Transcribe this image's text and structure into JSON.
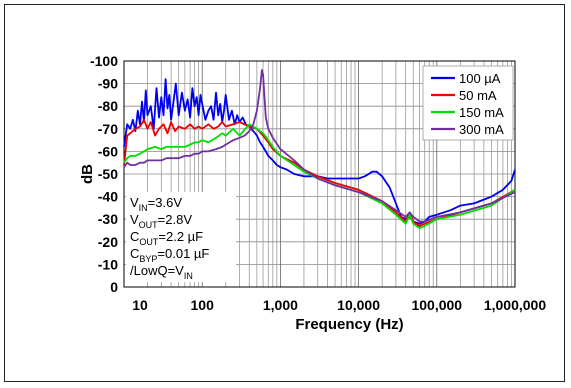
{
  "chart_data": {
    "type": "line",
    "xlabel": "Frequency (Hz)",
    "ylabel": "dB",
    "x_scale": "log",
    "xlim": [
      10,
      1000000
    ],
    "ylim": [
      0,
      -100
    ],
    "x_ticks": [
      {
        "value": 10,
        "label": "10"
      },
      {
        "value": 100,
        "label": "100"
      },
      {
        "value": 1000,
        "label": "1,000"
      },
      {
        "value": 10000,
        "label": "10,000"
      },
      {
        "value": 100000,
        "label": "100,000"
      },
      {
        "value": 1000000,
        "label": "1,000,000"
      }
    ],
    "y_ticks": [
      {
        "value": 0,
        "label": "0"
      },
      {
        "value": -10,
        "label": "-10"
      },
      {
        "value": -20,
        "label": "-20"
      },
      {
        "value": -30,
        "label": "-30"
      },
      {
        "value": -40,
        "label": "-40"
      },
      {
        "value": -50,
        "label": "-50"
      },
      {
        "value": -60,
        "label": "-60"
      },
      {
        "value": -70,
        "label": "-70"
      },
      {
        "value": -80,
        "label": "-80"
      },
      {
        "value": -90,
        "label": "-90"
      },
      {
        "value": -100,
        "label": "-100"
      }
    ],
    "grid": true,
    "legend_position": "top-right",
    "annotation": [
      {
        "main": "V",
        "sub": "IN",
        "rest": "=3.6V"
      },
      {
        "main": "V",
        "sub": "OUT",
        "rest": "=2.8V"
      },
      {
        "main": "C",
        "sub": "OUT",
        "rest": "=2.2 µF"
      },
      {
        "main": "C",
        "sub": "BYP",
        "rest": "=0.01 µF"
      },
      {
        "main": "/LowQ=V",
        "sub": "IN",
        "rest": ""
      }
    ],
    "series": [
      {
        "name": "100 µA",
        "color": "#0000ee",
        "x": [
          10,
          11,
          12,
          13,
          14,
          15,
          16,
          17,
          18,
          19,
          20,
          22,
          24,
          26,
          28,
          30,
          32,
          34,
          36,
          38,
          40,
          43,
          46,
          50,
          55,
          60,
          65,
          70,
          75,
          80,
          85,
          90,
          95,
          100,
          110,
          120,
          130,
          140,
          150,
          160,
          170,
          180,
          190,
          200,
          220,
          240,
          260,
          280,
          300,
          330,
          360,
          400,
          450,
          500,
          550,
          600,
          650,
          700,
          800,
          900,
          1000,
          1200,
          1500,
          2000,
          3000,
          4000,
          5000,
          7000,
          10000,
          12000,
          15000,
          17000,
          20000,
          25000,
          30000,
          35000,
          40000,
          45000,
          50000,
          60000,
          70000,
          80000,
          100000,
          150000,
          200000,
          300000,
          500000,
          700000,
          900000,
          1000000
        ],
        "y": [
          -62,
          -72,
          -70,
          -74,
          -69,
          -78,
          -72,
          -82,
          -73,
          -87,
          -76,
          -80,
          -70,
          -88,
          -75,
          -84,
          -76,
          -92,
          -79,
          -85,
          -74,
          -82,
          -90,
          -76,
          -86,
          -78,
          -83,
          -75,
          -88,
          -80,
          -84,
          -76,
          -85,
          -81,
          -74,
          -78,
          -80,
          -74,
          -86,
          -76,
          -81,
          -73,
          -78,
          -85,
          -74,
          -78,
          -72,
          -76,
          -73,
          -75,
          -72,
          -71,
          -69,
          -67,
          -64,
          -62,
          -60,
          -58,
          -56,
          -54,
          -53,
          -52,
          -50,
          -49,
          -49,
          -48,
          -48,
          -48,
          -48,
          -49,
          -51,
          -51,
          -49,
          -44,
          -37,
          -31,
          -30,
          -31,
          -29,
          -28,
          -29,
          -31,
          -32,
          -34,
          -36,
          -37,
          -40,
          -43,
          -47,
          -52
        ]
      },
      {
        "name": "50 mA",
        "color": "#ee0000",
        "x": [
          10,
          11,
          12,
          14,
          16,
          18,
          20,
          22,
          25,
          28,
          32,
          36,
          40,
          45,
          50,
          60,
          70,
          80,
          90,
          100,
          120,
          140,
          160,
          180,
          200,
          250,
          300,
          400,
          500,
          600,
          700,
          800,
          1000,
          1500,
          2000,
          3000,
          5000,
          10000,
          20000,
          30000,
          40000,
          45000,
          50000,
          60000,
          70000,
          100000,
          200000,
          500000,
          1000000
        ],
        "y": [
          -54,
          -67,
          -68,
          -70,
          -71,
          -74,
          -70,
          -73,
          -67,
          -70,
          -72,
          -68,
          -73,
          -69,
          -71,
          -70,
          -72,
          -70,
          -71,
          -70,
          -72,
          -70,
          -71,
          -73,
          -71,
          -72,
          -73,
          -71,
          -70,
          -67,
          -64,
          -61,
          -58,
          -55,
          -52,
          -49,
          -46,
          -43,
          -38,
          -33,
          -29,
          -33,
          -29,
          -27,
          -28,
          -30,
          -33,
          -37,
          -43
        ]
      },
      {
        "name": "150 mA",
        "color": "#00dd00",
        "x": [
          10,
          11,
          12,
          14,
          16,
          18,
          20,
          25,
          30,
          35,
          40,
          50,
          60,
          70,
          80,
          90,
          100,
          120,
          150,
          180,
          200,
          250,
          300,
          400,
          500,
          600,
          700,
          800,
          1000,
          1500,
          2000,
          3000,
          5000,
          10000,
          20000,
          30000,
          40000,
          45000,
          50000,
          60000,
          70000,
          100000,
          200000,
          500000,
          1000000
        ],
        "y": [
          -55,
          -57,
          -58,
          -58,
          -59,
          -60,
          -61,
          -62,
          -61,
          -62,
          -62,
          -62,
          -62,
          -63,
          -64,
          -64,
          -65,
          -64,
          -66,
          -68,
          -67,
          -70,
          -67,
          -72,
          -70,
          -68,
          -65,
          -62,
          -58,
          -54,
          -51,
          -48,
          -45,
          -42,
          -37,
          -32,
          -28,
          -32,
          -28,
          -26,
          -27,
          -30,
          -32,
          -36,
          -43
        ]
      },
      {
        "name": "300 mA",
        "color": "#7030a0",
        "x": [
          10,
          11,
          12,
          14,
          16,
          18,
          20,
          25,
          30,
          35,
          40,
          50,
          60,
          70,
          80,
          90,
          100,
          120,
          150,
          180,
          200,
          250,
          300,
          350,
          400,
          450,
          500,
          550,
          580,
          600,
          620,
          650,
          700,
          800,
          1000,
          1500,
          2000,
          3000,
          5000,
          10000,
          20000,
          30000,
          40000,
          45000,
          50000,
          60000,
          70000,
          100000,
          200000,
          500000,
          1000000
        ],
        "y": [
          -53,
          -55,
          -54,
          -54,
          -55,
          -55,
          -56,
          -56,
          -56,
          -57,
          -57,
          -57,
          -58,
          -58,
          -59,
          -59,
          -60,
          -60,
          -61,
          -62,
          -63,
          -65,
          -66,
          -67,
          -69,
          -72,
          -78,
          -88,
          -96,
          -94,
          -86,
          -75,
          -70,
          -66,
          -61,
          -56,
          -52,
          -48,
          -45,
          -42,
          -38,
          -34,
          -31,
          -33,
          -31,
          -29,
          -29,
          -31,
          -33,
          -37,
          -42
        ]
      }
    ]
  }
}
